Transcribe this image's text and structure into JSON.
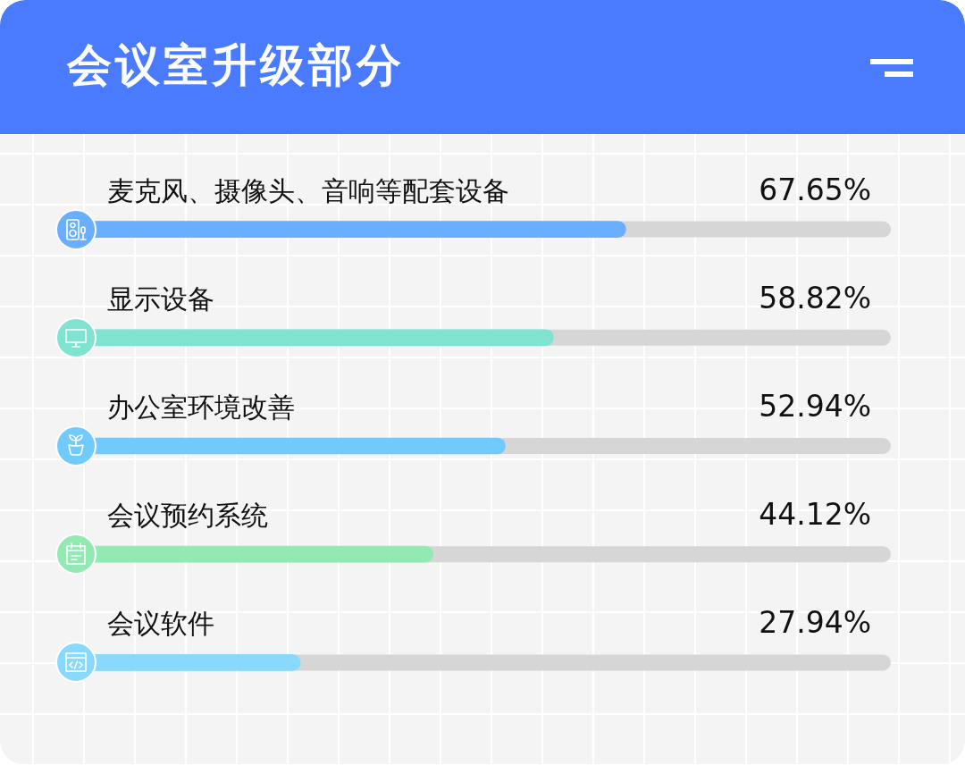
{
  "chart_data": {
    "type": "bar",
    "orientation": "horizontal",
    "title": "会议室升级部分",
    "categories": [
      "麦克风、摄像头、音响等配套设备",
      "显示设备",
      "办公室环境改善",
      "会议预约系统",
      "会议软件"
    ],
    "values": [
      67.65,
      58.82,
      52.94,
      44.12,
      27.94
    ],
    "value_labels": [
      "67.65%",
      "58.82%",
      "52.94%",
      "44.12%",
      "27.94%"
    ],
    "colors": [
      "#6aaeff",
      "#7ee3cf",
      "#70cafc",
      "#92e9b1",
      "#88d9fc"
    ],
    "xlim": [
      0,
      100
    ]
  }
}
